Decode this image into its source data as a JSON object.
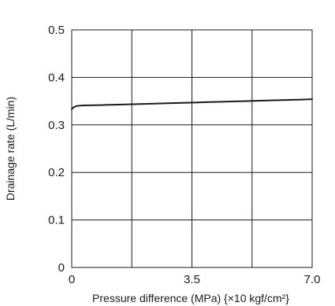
{
  "chart_data": {
    "type": "line",
    "title": "",
    "xlabel": "Pressure difference (MPa) {×10 kgf/cm²}",
    "ylabel": "Drainage rate (L/min)",
    "xlim": [
      0,
      7.0
    ],
    "ylim": [
      0,
      0.5
    ],
    "grid": true,
    "x_grid": [
      0,
      1.75,
      3.5,
      5.25,
      7.0
    ],
    "y_ticks": [
      0,
      0.1,
      0.2,
      0.3,
      0.4,
      0.5
    ],
    "x_tick_labels": [
      {
        "value": 0,
        "label": "0"
      },
      {
        "value": 3.5,
        "label": "3.5"
      },
      {
        "value": 7.0,
        "label": "7.0"
      }
    ],
    "y_tick_labels": [
      {
        "value": 0,
        "label": "0"
      },
      {
        "value": 0.1,
        "label": "0.1"
      },
      {
        "value": 0.2,
        "label": "0.2"
      },
      {
        "value": 0.3,
        "label": "0.3"
      },
      {
        "value": 0.4,
        "label": "0.4"
      },
      {
        "value": 0.5,
        "label": "0.5"
      }
    ],
    "series": [
      {
        "color": "#1a1a1a",
        "points": [
          {
            "x": 0,
            "y": 0.333
          },
          {
            "x": 0.05,
            "y": 0.337
          },
          {
            "x": 0.15,
            "y": 0.34
          },
          {
            "x": 0.35,
            "y": 0.341
          },
          {
            "x": 1.0,
            "y": 0.342
          },
          {
            "x": 2.0,
            "y": 0.344
          },
          {
            "x": 3.0,
            "y": 0.346
          },
          {
            "x": 4.0,
            "y": 0.348
          },
          {
            "x": 5.0,
            "y": 0.35
          },
          {
            "x": 6.0,
            "y": 0.352
          },
          {
            "x": 7.0,
            "y": 0.354
          }
        ]
      }
    ]
  }
}
